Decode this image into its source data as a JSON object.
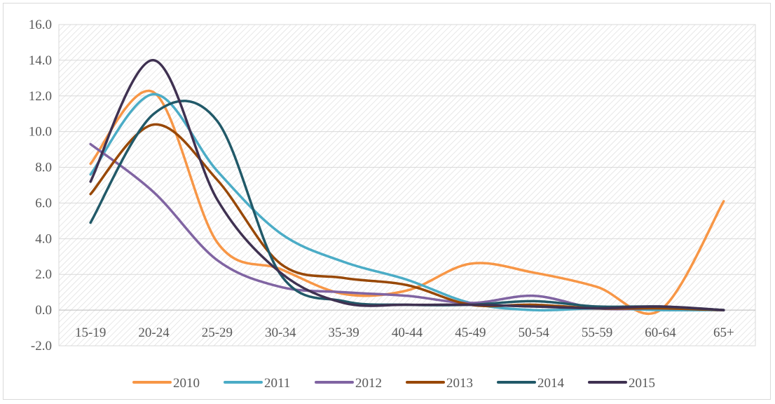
{
  "chart_data": {
    "type": "line",
    "title": "",
    "xlabel": "",
    "ylabel": "",
    "categories": [
      "15-19",
      "20-24",
      "25-29",
      "30-34",
      "35-39",
      "40-44",
      "45-49",
      "50-54",
      "55-59",
      "60-64",
      "65+"
    ],
    "ylim": [
      -2.0,
      16.0
    ],
    "yticks": [
      "-2.0",
      "0.0",
      "2.0",
      "4.0",
      "6.0",
      "8.0",
      "10.0",
      "12.0",
      "14.0",
      "16.0"
    ],
    "grid": "horizontal",
    "plot_background": "diagonal-hatch",
    "smooth": true,
    "legend_position": "bottom",
    "series": [
      {
        "name": "2010",
        "color": "#F79646",
        "values": [
          8.2,
          12.2,
          3.8,
          2.3,
          0.9,
          1.1,
          2.6,
          2.1,
          1.3,
          0.0,
          6.1
        ]
      },
      {
        "name": "2011",
        "color": "#4BACC6",
        "values": [
          7.6,
          12.1,
          7.8,
          4.3,
          2.7,
          1.7,
          0.4,
          0.0,
          0.1,
          0.0,
          0.0
        ]
      },
      {
        "name": "2012",
        "color": "#8064A2",
        "values": [
          9.3,
          6.6,
          2.8,
          1.3,
          1.0,
          0.8,
          0.4,
          0.8,
          0.1,
          0.1,
          0.0
        ]
      },
      {
        "name": "2013",
        "color": "#984807",
        "values": [
          6.5,
          10.4,
          7.3,
          2.6,
          1.8,
          1.4,
          0.3,
          0.3,
          0.1,
          0.1,
          0.0
        ]
      },
      {
        "name": "2014",
        "color": "#215968",
        "values": [
          4.9,
          11.0,
          10.6,
          2.0,
          0.5,
          0.3,
          0.3,
          0.5,
          0.2,
          0.2,
          0.0
        ]
      },
      {
        "name": "2015",
        "color": "#3F3151",
        "values": [
          7.2,
          14.0,
          6.2,
          2.1,
          0.4,
          0.3,
          0.3,
          0.2,
          0.1,
          0.2,
          0.0
        ]
      }
    ]
  }
}
